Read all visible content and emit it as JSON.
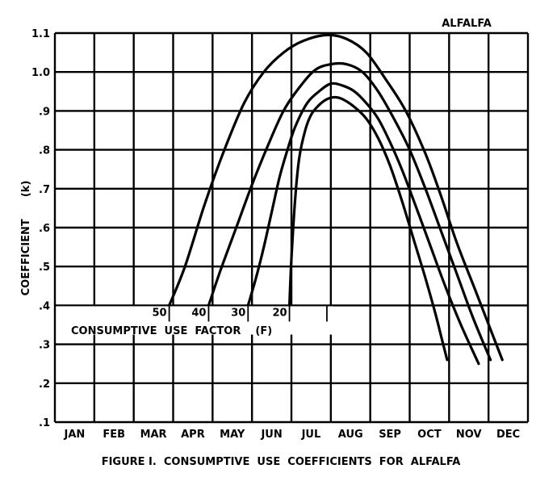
{
  "chart_data": {
    "type": "line",
    "title": "ALFALFA",
    "caption": "FIGURE I.  CONSUMPTIVE  USE  COEFFICIENTS  FOR  ALFALFA",
    "ylabel": "COEFFICIENT      (k)",
    "xlabel": "",
    "categories": [
      "JAN",
      "FEB",
      "MAR",
      "APR",
      "MAY",
      "JUN",
      "JUL",
      "AUG",
      "SEP",
      "OCT",
      "NOV",
      "DEC"
    ],
    "x_range": [
      0,
      12
    ],
    "ylim": [
      0.1,
      1.1
    ],
    "y_ticks": [
      {
        "value": 0.1,
        "label": ".1"
      },
      {
        "value": 0.2,
        "label": ".2"
      },
      {
        "value": 0.3,
        "label": ".3"
      },
      {
        "value": 0.4,
        "label": ".4"
      },
      {
        "value": 0.5,
        "label": ".5"
      },
      {
        "value": 0.6,
        "label": ".6"
      },
      {
        "value": 0.7,
        "label": ".7"
      },
      {
        "value": 0.8,
        "label": ".8"
      },
      {
        "value": 0.9,
        "label": ".9"
      },
      {
        "value": 1.0,
        "label": "1.0"
      },
      {
        "value": 1.1,
        "label": "1.1"
      }
    ],
    "grid": true,
    "factor_axis_label": "CONSUMPTIVE  USE  FACTOR    (F)",
    "factor_ticks": [
      {
        "label": "50",
        "x": 2.9
      },
      {
        "label": "40",
        "x": 3.9
      },
      {
        "label": "30",
        "x": 4.9
      },
      {
        "label": "20",
        "x": 5.95
      },
      {
        "label": "",
        "x": 6.9
      }
    ],
    "series": [
      {
        "name": "50",
        "x": [
          2.9,
          3.3,
          3.8,
          4.3,
          4.8,
          5.3,
          5.8,
          6.3,
          6.9,
          7.4,
          7.9,
          8.4,
          8.9,
          9.4,
          9.8,
          10.2,
          10.7,
          11.35
        ],
        "y": [
          0.4,
          0.5,
          0.66,
          0.8,
          0.92,
          1.0,
          1.05,
          1.08,
          1.095,
          1.085,
          1.05,
          0.98,
          0.9,
          0.79,
          0.68,
          0.56,
          0.43,
          0.26
        ]
      },
      {
        "name": "40",
        "x": [
          3.9,
          4.2,
          4.6,
          5.0,
          5.4,
          5.8,
          6.2,
          6.6,
          7.0,
          7.4,
          7.8,
          8.2,
          8.6,
          9.0,
          9.4,
          9.8,
          10.2,
          10.6,
          11.05
        ],
        "y": [
          0.4,
          0.49,
          0.6,
          0.71,
          0.81,
          0.9,
          0.96,
          1.005,
          1.02,
          1.02,
          1.0,
          0.95,
          0.88,
          0.8,
          0.7,
          0.59,
          0.48,
          0.37,
          0.26
        ]
      },
      {
        "name": "30",
        "x": [
          4.9,
          5.1,
          5.3,
          5.5,
          5.7,
          5.9,
          6.1,
          6.4,
          6.7,
          7.0,
          7.3,
          7.6,
          7.9,
          8.2,
          8.5,
          8.8,
          9.1,
          9.5,
          9.9,
          10.3,
          10.75
        ],
        "y": [
          0.4,
          0.47,
          0.55,
          0.64,
          0.73,
          0.8,
          0.86,
          0.92,
          0.95,
          0.97,
          0.965,
          0.95,
          0.92,
          0.88,
          0.82,
          0.75,
          0.67,
          0.56,
          0.45,
          0.35,
          0.25
        ]
      },
      {
        "name": "20",
        "x": [
          5.95,
          6.0,
          6.1,
          6.2,
          6.35,
          6.5,
          6.7,
          6.9,
          7.1,
          7.3,
          7.6,
          7.9,
          8.2,
          8.5,
          8.8,
          9.1,
          9.4,
          9.65,
          9.8,
          9.95
        ],
        "y": [
          0.4,
          0.52,
          0.68,
          0.78,
          0.85,
          0.89,
          0.915,
          0.93,
          0.935,
          0.93,
          0.91,
          0.88,
          0.83,
          0.76,
          0.67,
          0.57,
          0.47,
          0.38,
          0.32,
          0.26
        ]
      }
    ]
  }
}
